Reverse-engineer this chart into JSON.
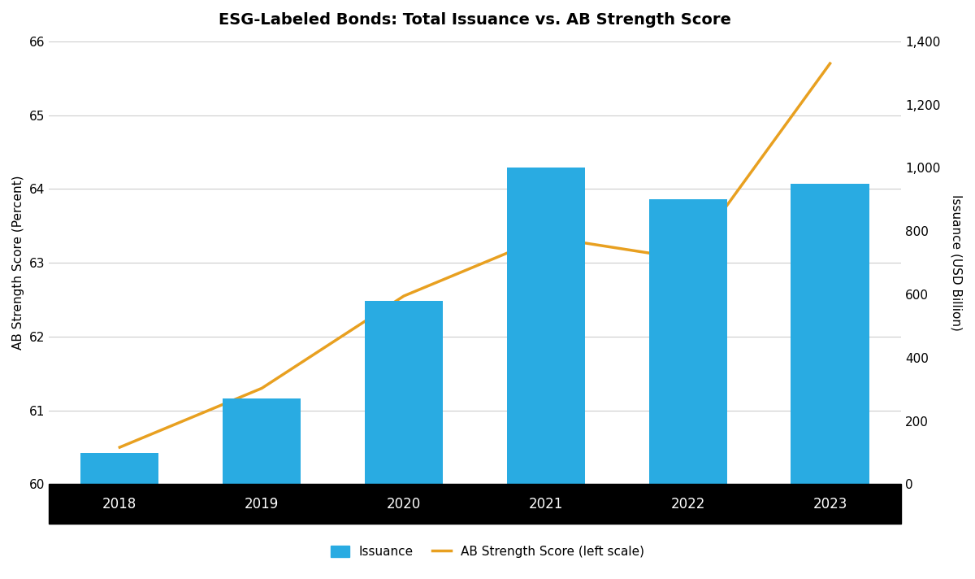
{
  "title": "ESG-Labeled Bonds: Total Issuance vs. AB Strength Score",
  "years": [
    "2018",
    "2019",
    "2020",
    "2021",
    "2022",
    "2023"
  ],
  "bar_values": [
    100,
    270,
    580,
    1000,
    900,
    950
  ],
  "line_values": [
    60.5,
    61.3,
    62.55,
    63.35,
    63.05,
    65.7
  ],
  "bar_color": "#29ABE2",
  "line_color": "#E8A020",
  "left_ylim": [
    60,
    66
  ],
  "right_ylim": [
    0,
    1400
  ],
  "left_yticks": [
    60,
    61,
    62,
    63,
    64,
    65,
    66
  ],
  "right_yticks": [
    0,
    200,
    400,
    600,
    800,
    1000,
    1200,
    1400
  ],
  "left_ylabel": "AB Strength Score (Percent)",
  "right_ylabel": "Issuance (USD Billion)",
  "legend_bar": "Issuance",
  "legend_line": "AB Strength Score (left scale)",
  "title_fontsize": 14,
  "axis_label_fontsize": 11,
  "tick_fontsize": 11,
  "legend_fontsize": 11,
  "background_color": "#ffffff",
  "grid_color": "#cccccc",
  "line_width": 2.5
}
